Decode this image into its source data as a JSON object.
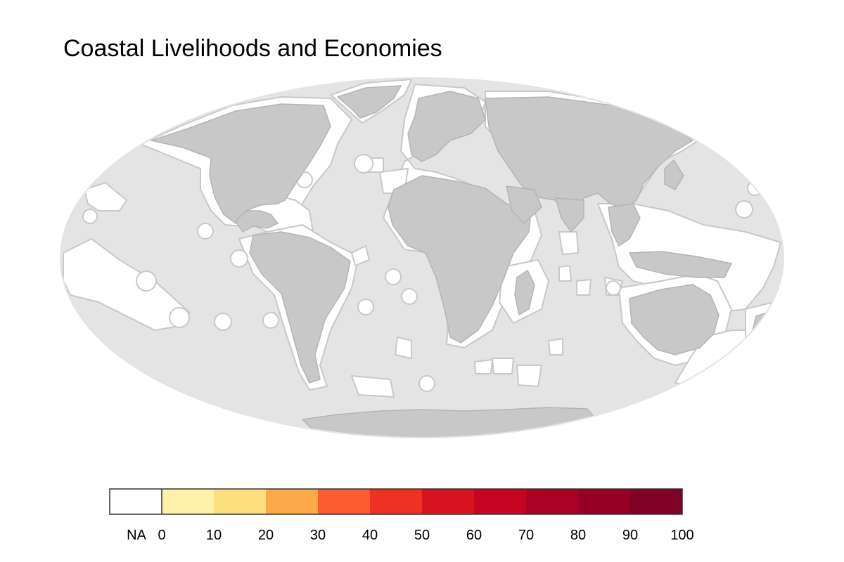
{
  "title": "Coastal Livelihoods and Economies",
  "map": {
    "projection": "mollweide",
    "ocean_color": "#e4e4e4",
    "land_color": "#c8c8c8",
    "land_border_color": "#b4b4b4",
    "eez_fill_color": "#ffffff",
    "eez_stroke_color": "#c8c8c8",
    "regions_shown": "all coastal regions shown as NA (no data)"
  },
  "legend": {
    "na_label": "NA",
    "na_color": "#ffffff",
    "bins": [
      {
        "from": 0,
        "to": 10,
        "color": "#fff0aa"
      },
      {
        "from": 10,
        "to": 20,
        "color": "#fedf7e"
      },
      {
        "from": 20,
        "to": 30,
        "color": "#fdab4a"
      },
      {
        "from": 30,
        "to": 40,
        "color": "#fc5c30"
      },
      {
        "from": 40,
        "to": 50,
        "color": "#ef3123"
      },
      {
        "from": 50,
        "to": 60,
        "color": "#d7141f"
      },
      {
        "from": 60,
        "to": 70,
        "color": "#c50522"
      },
      {
        "from": 70,
        "to": 80,
        "color": "#ac0025"
      },
      {
        "from": 80,
        "to": 90,
        "color": "#950024"
      },
      {
        "from": 90,
        "to": 100,
        "color": "#800026"
      }
    ],
    "tick_labels": [
      "0",
      "10",
      "20",
      "30",
      "40",
      "50",
      "60",
      "70",
      "80",
      "90",
      "100"
    ]
  }
}
